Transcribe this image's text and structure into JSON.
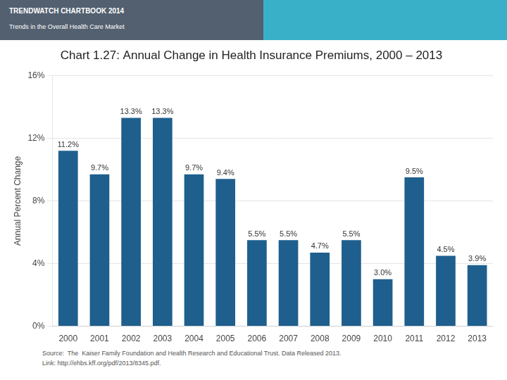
{
  "chart_data": {
    "type": "bar",
    "title": "Chart 1.27: Annual Change in Health Insurance Premiums, 2000 – 2013",
    "annotations": [
      "TRENDWATCH CHARTBOOK 2014",
      "Trends in the Overall Health Care Market",
      "Source:  The  Kaiser Family Foundation and Health Research and Educational Trust. Data Released 2013.\nLink: http://ehbs.kff.org/pdf/2013/8345.pdf."
    ],
    "y_label": "Annual Percent Change",
    "categories": [
      "2000",
      "2001",
      "2002",
      "2003",
      "2004",
      "2005",
      "2006",
      "2007",
      "2008",
      "2009",
      "2010",
      "2011",
      "2012",
      "2013"
    ],
    "values": [
      11.2,
      9.7,
      13.3,
      13.3,
      9.7,
      9.4,
      5.5,
      5.5,
      4.7,
      5.5,
      3.0,
      9.5,
      4.5,
      3.9
    ],
    "value_labels": [
      "11.2%",
      "9.7%",
      "13.3%",
      "13.3%",
      "9.7%",
      "9.4%",
      "5.5%",
      "5.5%",
      "4.7%",
      "5.5%",
      "3.0%",
      "9.5%",
      "4.5%",
      "3.9%"
    ],
    "data_labels": true,
    "color": "#1e5f8e",
    "ylim": [
      0,
      16
    ],
    "yticks": [
      {
        "value": 0,
        "label": "0%"
      },
      {
        "value": 4,
        "label": "4%"
      },
      {
        "value": 8,
        "label": "8%"
      },
      {
        "value": 12,
        "label": "12%"
      },
      {
        "value": 16,
        "label": "16%"
      }
    ],
    "grid": true
  }
}
